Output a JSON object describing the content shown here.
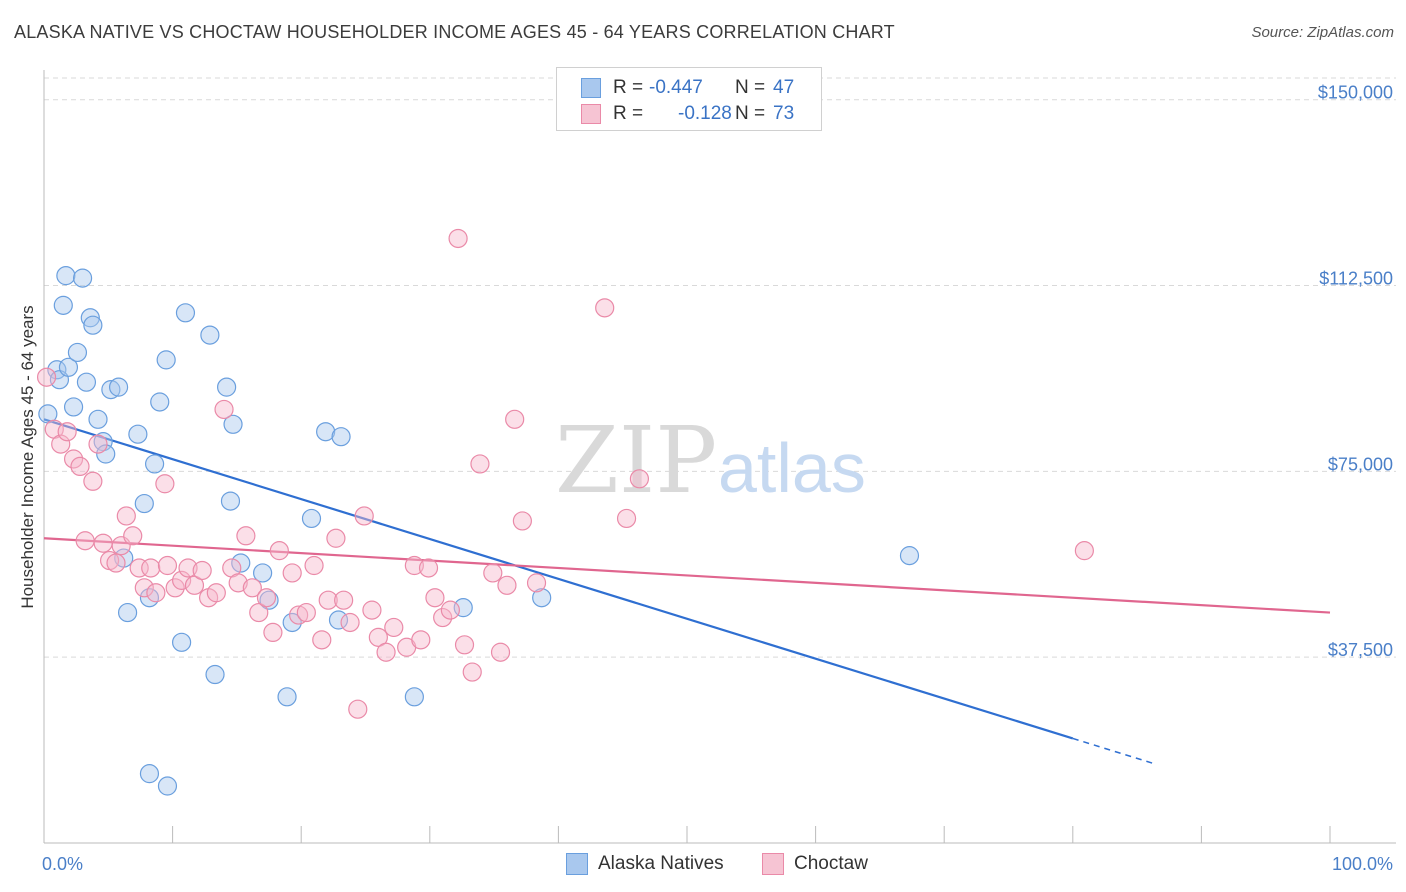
{
  "title": "ALASKA NATIVE VS CHOCTAW HOUSEHOLDER INCOME AGES 45 - 64 YEARS CORRELATION CHART",
  "source": "Source: ZipAtlas.com",
  "watermark": {
    "zip": "ZIP",
    "atlas": "atlas"
  },
  "colors": {
    "blue_fill": "#a9c8ee",
    "blue_stroke": "#6a9fde",
    "blue_line": "#2f6fd1",
    "pink_fill": "#f6b8cb",
    "pink_stroke": "#ea8aa8",
    "pink_line": "#e0668f",
    "grid": "#d9d9d9",
    "axis_text": "#4a7fc8"
  },
  "stats": [
    {
      "label": "R =",
      "r": "-0.447",
      "n_label": "N =",
      "n": "47"
    },
    {
      "label": "R =",
      "r": "-0.128",
      "n_label": "N =",
      "n": "73"
    }
  ],
  "legend": [
    "Alaska Natives",
    "Choctaw"
  ],
  "chart_data": {
    "type": "scatter",
    "title": "ALASKA NATIVE VS CHOCTAW HOUSEHOLDER INCOME AGES 45 - 64 YEARS CORRELATION CHART",
    "xlabel": "",
    "ylabel": "Householder Income Ages 45 - 64 years",
    "xlim": [
      0,
      100
    ],
    "ylim": [
      0,
      156000
    ],
    "x_tick_labels": [
      "0.0%",
      "100.0%"
    ],
    "y_ticks": [
      37500,
      75000,
      112500,
      150000
    ],
    "y_tick_labels": [
      "$37,500",
      "$75,000",
      "$112,500",
      "$150,000"
    ],
    "grid": true,
    "series": [
      {
        "name": "Alaska Natives",
        "points": [
          [
            0.3,
            86600
          ],
          [
            1.0,
            95500
          ],
          [
            1.2,
            93500
          ],
          [
            1.5,
            108500
          ],
          [
            1.7,
            114500
          ],
          [
            1.9,
            96000
          ],
          [
            2.3,
            88000
          ],
          [
            2.6,
            99000
          ],
          [
            3.0,
            114000
          ],
          [
            3.3,
            93000
          ],
          [
            3.6,
            106000
          ],
          [
            3.8,
            104500
          ],
          [
            4.2,
            85500
          ],
          [
            4.6,
            81000
          ],
          [
            4.8,
            78500
          ],
          [
            5.2,
            91500
          ],
          [
            5.8,
            92000
          ],
          [
            6.2,
            57500
          ],
          [
            6.5,
            46500
          ],
          [
            7.3,
            82500
          ],
          [
            7.8,
            68500
          ],
          [
            8.2,
            49500
          ],
          [
            8.6,
            76500
          ],
          [
            9.0,
            89000
          ],
          [
            9.5,
            97500
          ],
          [
            8.2,
            14000
          ],
          [
            9.6,
            11500
          ],
          [
            10.7,
            40500
          ],
          [
            11.0,
            107000
          ],
          [
            12.9,
            102500
          ],
          [
            13.3,
            34000
          ],
          [
            14.2,
            92000
          ],
          [
            14.7,
            84500
          ],
          [
            14.5,
            69000
          ],
          [
            15.3,
            56500
          ],
          [
            17.0,
            54500
          ],
          [
            17.5,
            49000
          ],
          [
            18.9,
            29500
          ],
          [
            19.3,
            44500
          ],
          [
            20.8,
            65500
          ],
          [
            21.9,
            83000
          ],
          [
            23.1,
            82000
          ],
          [
            22.9,
            45000
          ],
          [
            28.8,
            29500
          ],
          [
            32.6,
            47500
          ],
          [
            38.7,
            49500
          ],
          [
            67.3,
            58000
          ]
        ],
        "trend": {
          "x1": 0,
          "y1": 85500,
          "x2": 100,
          "y2": 5000,
          "solid_until_x": 80
        }
      },
      {
        "name": "Choctaw",
        "points": [
          [
            0.2,
            94000
          ],
          [
            0.8,
            83500
          ],
          [
            1.3,
            80500
          ],
          [
            1.8,
            83000
          ],
          [
            2.3,
            77500
          ],
          [
            2.8,
            76000
          ],
          [
            3.2,
            61000
          ],
          [
            3.8,
            73000
          ],
          [
            4.2,
            80500
          ],
          [
            4.6,
            60500
          ],
          [
            5.1,
            57000
          ],
          [
            5.6,
            56500
          ],
          [
            6.0,
            60000
          ],
          [
            6.4,
            66000
          ],
          [
            6.9,
            62000
          ],
          [
            7.4,
            55500
          ],
          [
            7.8,
            51500
          ],
          [
            8.3,
            55500
          ],
          [
            8.7,
            50500
          ],
          [
            9.4,
            72500
          ],
          [
            9.6,
            56000
          ],
          [
            10.2,
            51500
          ],
          [
            10.7,
            53000
          ],
          [
            11.2,
            55500
          ],
          [
            11.7,
            52000
          ],
          [
            12.3,
            55000
          ],
          [
            12.8,
            49500
          ],
          [
            13.4,
            50500
          ],
          [
            14.0,
            87500
          ],
          [
            14.6,
            55500
          ],
          [
            15.1,
            52500
          ],
          [
            15.7,
            62000
          ],
          [
            16.2,
            51500
          ],
          [
            16.7,
            46500
          ],
          [
            17.3,
            49500
          ],
          [
            17.8,
            42500
          ],
          [
            18.3,
            59000
          ],
          [
            19.3,
            54500
          ],
          [
            19.8,
            46000
          ],
          [
            20.4,
            46500
          ],
          [
            21.0,
            56000
          ],
          [
            21.6,
            41000
          ],
          [
            22.1,
            49000
          ],
          [
            22.7,
            61500
          ],
          [
            23.3,
            49000
          ],
          [
            23.8,
            44500
          ],
          [
            24.4,
            27000
          ],
          [
            24.9,
            66000
          ],
          [
            25.5,
            47000
          ],
          [
            26.0,
            41500
          ],
          [
            26.6,
            38500
          ],
          [
            27.2,
            43500
          ],
          [
            28.2,
            39500
          ],
          [
            28.8,
            56000
          ],
          [
            29.3,
            41000
          ],
          [
            29.9,
            55500
          ],
          [
            30.4,
            49500
          ],
          [
            31.0,
            45500
          ],
          [
            31.6,
            47000
          ],
          [
            32.2,
            122000
          ],
          [
            32.7,
            40000
          ],
          [
            33.3,
            34500
          ],
          [
            33.9,
            76500
          ],
          [
            34.9,
            54500
          ],
          [
            35.5,
            38500
          ],
          [
            36.0,
            52000
          ],
          [
            36.6,
            85500
          ],
          [
            37.2,
            65000
          ],
          [
            38.3,
            52500
          ],
          [
            43.6,
            108000
          ],
          [
            45.3,
            65500
          ],
          [
            46.3,
            73500
          ],
          [
            80.9,
            59000
          ]
        ],
        "trend": {
          "x1": 0,
          "y1": 61500,
          "x2": 100,
          "y2": 46500
        }
      }
    ]
  }
}
